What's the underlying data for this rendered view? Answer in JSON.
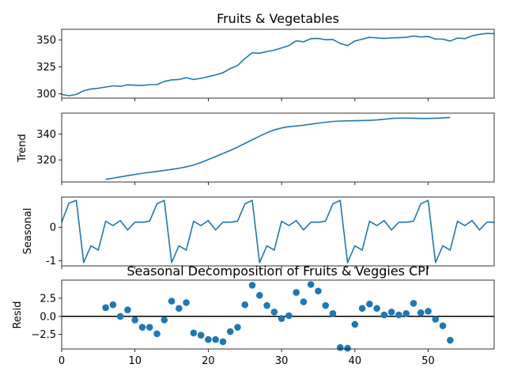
{
  "figure": {
    "suptitle": "Seasonal Decomposition of Fruits & Veggies CPI"
  },
  "chart_data": [
    {
      "type": "line",
      "panel": "observed",
      "title": "Fruits & Vegetables",
      "ylabel": "",
      "xlim": [
        0,
        59
      ],
      "ylim": [
        296,
        360
      ],
      "yticks": [
        300,
        325,
        350
      ],
      "grid": false,
      "color": "#1f77b4",
      "x": [
        0,
        1,
        2,
        3,
        4,
        5,
        6,
        7,
        8,
        9,
        10,
        11,
        12,
        13,
        14,
        15,
        16,
        17,
        18,
        19,
        20,
        21,
        22,
        23,
        24,
        25,
        26,
        27,
        28,
        29,
        30,
        31,
        32,
        33,
        34,
        35,
        36,
        37,
        38,
        39,
        40,
        41,
        42,
        43,
        44,
        45,
        46,
        47,
        48,
        49,
        50,
        51,
        52,
        53,
        54,
        55,
        56,
        57,
        58,
        59
      ],
      "values": [
        299.5,
        298.2,
        299.5,
        302.8,
        304.5,
        305.2,
        306.3,
        307.4,
        307.0,
        308.4,
        308.0,
        307.8,
        308.5,
        308.6,
        311.5,
        313.0,
        313.3,
        315.0,
        313.3,
        314.4,
        315.9,
        317.6,
        319.6,
        323.5,
        326.3,
        332.8,
        338.2,
        337.7,
        339.3,
        340.6,
        342.6,
        344.8,
        349.3,
        348.3,
        351.3,
        351.5,
        350.3,
        350.5,
        346.8,
        344.8,
        349.1,
        350.8,
        352.5,
        352.0,
        351.5,
        352.0,
        352.2,
        352.5,
        353.8,
        352.9,
        353.3,
        350.9,
        350.9,
        349.0,
        351.9,
        351.3,
        353.9,
        355.3,
        356.2,
        355.9
      ]
    },
    {
      "type": "line",
      "panel": "trend",
      "ylabel": "Trend",
      "xlim": [
        0,
        59
      ],
      "ylim": [
        303,
        356
      ],
      "yticks": [
        320,
        340
      ],
      "grid": false,
      "color": "#1f77b4",
      "x": [
        6,
        7,
        8,
        9,
        10,
        11,
        12,
        13,
        14,
        15,
        16,
        17,
        18,
        19,
        20,
        21,
        22,
        23,
        24,
        25,
        26,
        27,
        28,
        29,
        30,
        31,
        32,
        33,
        34,
        35,
        36,
        37,
        38,
        39,
        40,
        41,
        42,
        43,
        44,
        45,
        46,
        47,
        48,
        49,
        50,
        51,
        52,
        53
      ],
      "values": [
        305.0,
        305.9,
        306.9,
        307.9,
        308.8,
        309.7,
        310.4,
        311.1,
        311.9,
        312.7,
        313.6,
        314.7,
        316.1,
        318.0,
        320.3,
        322.6,
        324.9,
        327.3,
        329.9,
        332.7,
        335.5,
        338.3,
        340.9,
        343.1,
        344.6,
        345.6,
        346.1,
        346.7,
        347.5,
        348.3,
        349.0,
        349.6,
        349.9,
        350.1,
        350.2,
        350.3,
        350.5,
        350.8,
        351.3,
        351.9,
        352.2,
        352.2,
        352.1,
        351.9,
        351.9,
        352.1,
        352.4,
        352.7
      ]
    },
    {
      "type": "line",
      "panel": "seasonal",
      "ylabel": "Seasonal",
      "xlim": [
        0,
        59
      ],
      "ylim": [
        -1.15,
        0.9
      ],
      "yticks": [
        -1,
        0
      ],
      "grid": false,
      "color": "#1f77b4",
      "x": [
        0,
        1,
        2,
        3,
        4,
        5,
        6,
        7,
        8,
        9,
        10,
        11,
        12,
        13,
        14,
        15,
        16,
        17,
        18,
        19,
        20,
        21,
        22,
        23,
        24,
        25,
        26,
        27,
        28,
        29,
        30,
        31,
        32,
        33,
        34,
        35,
        36,
        37,
        38,
        39,
        40,
        41,
        42,
        43,
        44,
        45,
        46,
        47,
        48,
        49,
        50,
        51,
        52,
        53,
        54,
        55,
        56,
        57,
        58,
        59
      ],
      "values": [
        0.15,
        0.72,
        0.8,
        -1.05,
        -0.55,
        -0.68,
        0.18,
        0.05,
        0.2,
        -0.08,
        0.15,
        0.15,
        0.18,
        0.7,
        0.8,
        -1.05,
        -0.55,
        -0.68,
        0.18,
        0.05,
        0.2,
        -0.08,
        0.15,
        0.15,
        0.18,
        0.7,
        0.8,
        -1.05,
        -0.55,
        -0.68,
        0.18,
        0.05,
        0.2,
        -0.08,
        0.15,
        0.15,
        0.18,
        0.7,
        0.8,
        -1.05,
        -0.55,
        -0.68,
        0.18,
        0.05,
        0.2,
        -0.08,
        0.15,
        0.15,
        0.18,
        0.7,
        0.8,
        -1.05,
        -0.55,
        -0.68,
        0.18,
        0.05,
        0.2,
        -0.08,
        0.15,
        0.15
      ]
    },
    {
      "type": "scatter",
      "panel": "resid",
      "ylabel": "Resid",
      "xlabel": "",
      "xlim": [
        0,
        59
      ],
      "ylim": [
        -4.5,
        5.0
      ],
      "yticks": [
        -2.5,
        0.0,
        2.5
      ],
      "ytick_labels": [
        "−2.5",
        "0.0",
        "2.5"
      ],
      "xticks": [
        0,
        10,
        20,
        30,
        40,
        50
      ],
      "zero_line": true,
      "grid": false,
      "color": "#1f77b4",
      "x": [
        6,
        7,
        8,
        9,
        10,
        11,
        12,
        13,
        14,
        15,
        16,
        17,
        18,
        19,
        20,
        21,
        22,
        23,
        24,
        25,
        26,
        27,
        28,
        29,
        30,
        31,
        32,
        33,
        34,
        35,
        36,
        37,
        38,
        39,
        40,
        41,
        42,
        43,
        44,
        45,
        46,
        47,
        48,
        49,
        50,
        51,
        52,
        53
      ],
      "values": [
        1.2,
        1.6,
        0.0,
        0.9,
        -0.5,
        -1.5,
        -1.5,
        -2.4,
        -0.5,
        2.1,
        1.1,
        1.9,
        -2.3,
        -2.6,
        -3.2,
        -3.2,
        -3.5,
        -2.1,
        -1.5,
        1.6,
        4.3,
        2.9,
        1.5,
        0.6,
        -0.3,
        0.1,
        3.3,
        2.0,
        4.4,
        3.5,
        1.5,
        0.4,
        -4.3,
        -4.4,
        -1.1,
        1.1,
        1.7,
        1.1,
        0.2,
        0.6,
        0.2,
        0.4,
        1.8,
        0.5,
        0.7,
        -0.4,
        -1.3,
        -3.3
      ]
    }
  ]
}
